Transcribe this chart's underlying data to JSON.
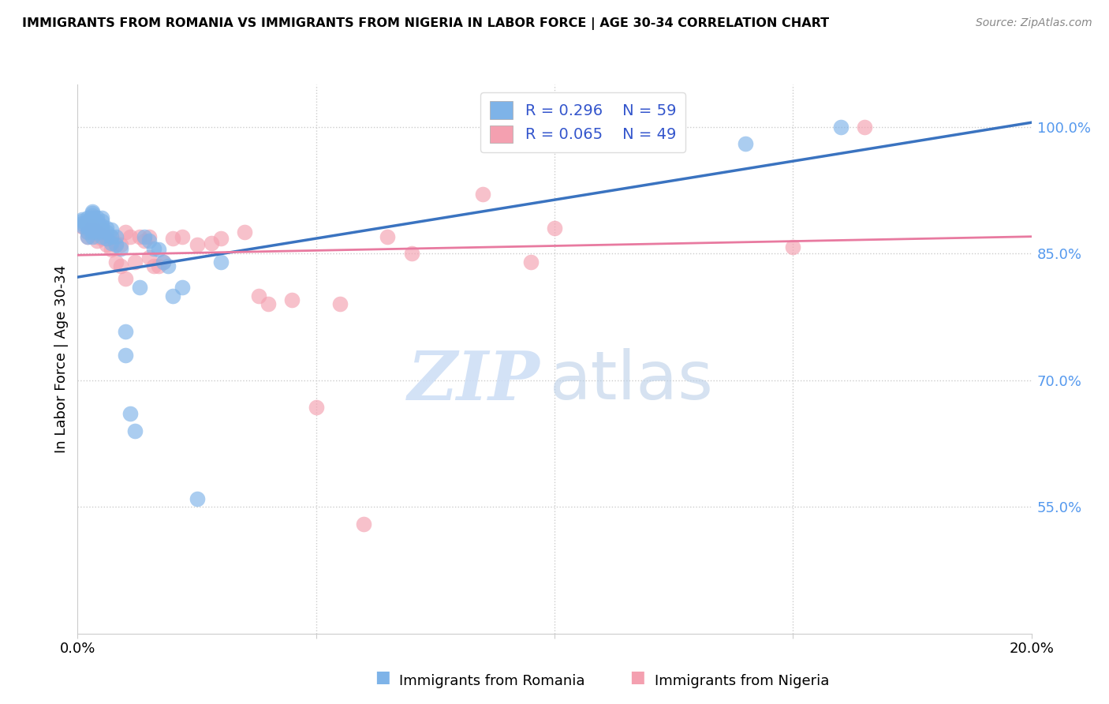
{
  "title": "IMMIGRANTS FROM ROMANIA VS IMMIGRANTS FROM NIGERIA IN LABOR FORCE | AGE 30-34 CORRELATION CHART",
  "source": "Source: ZipAtlas.com",
  "ylabel": "In Labor Force | Age 30-34",
  "xlim": [
    0.0,
    0.2
  ],
  "ylim": [
    0.4,
    1.05
  ],
  "y_ticks_right": [
    0.55,
    0.7,
    0.85,
    1.0
  ],
  "y_tick_labels_right": [
    "55.0%",
    "70.0%",
    "85.0%",
    "100.0%"
  ],
  "romania_R": 0.296,
  "romania_N": 59,
  "nigeria_R": 0.065,
  "nigeria_N": 49,
  "romania_color": "#7EB3E8",
  "nigeria_color": "#F4A0B0",
  "romania_line_color": "#3A73C0",
  "nigeria_line_color": "#E87AA0",
  "legend_label_romania": "Immigrants from Romania",
  "legend_label_nigeria": "Immigrants from Nigeria",
  "romania_x": [
    0.001,
    0.001,
    0.001,
    0.001,
    0.002,
    0.002,
    0.002,
    0.002,
    0.002,
    0.002,
    0.002,
    0.003,
    0.003,
    0.003,
    0.003,
    0.003,
    0.003,
    0.003,
    0.003,
    0.003,
    0.003,
    0.003,
    0.004,
    0.004,
    0.004,
    0.004,
    0.004,
    0.005,
    0.005,
    0.005,
    0.005,
    0.005,
    0.005,
    0.006,
    0.006,
    0.006,
    0.007,
    0.007,
    0.007,
    0.008,
    0.008,
    0.009,
    0.01,
    0.01,
    0.011,
    0.012,
    0.013,
    0.014,
    0.015,
    0.016,
    0.017,
    0.018,
    0.019,
    0.02,
    0.022,
    0.025,
    0.03,
    0.14,
    0.16
  ],
  "romania_y": [
    0.883,
    0.886,
    0.888,
    0.89,
    0.87,
    0.875,
    0.88,
    0.883,
    0.886,
    0.888,
    0.892,
    0.87,
    0.875,
    0.878,
    0.88,
    0.882,
    0.885,
    0.888,
    0.892,
    0.895,
    0.898,
    0.9,
    0.875,
    0.88,
    0.883,
    0.888,
    0.892,
    0.87,
    0.875,
    0.88,
    0.883,
    0.888,
    0.892,
    0.868,
    0.875,
    0.88,
    0.862,
    0.87,
    0.878,
    0.86,
    0.87,
    0.856,
    0.73,
    0.758,
    0.66,
    0.64,
    0.81,
    0.87,
    0.865,
    0.856,
    0.855,
    0.84,
    0.835,
    0.8,
    0.81,
    0.56,
    0.84,
    0.98,
    1.0
  ],
  "nigeria_x": [
    0.001,
    0.002,
    0.002,
    0.003,
    0.003,
    0.004,
    0.004,
    0.004,
    0.005,
    0.005,
    0.005,
    0.006,
    0.006,
    0.007,
    0.007,
    0.008,
    0.008,
    0.009,
    0.009,
    0.01,
    0.01,
    0.011,
    0.012,
    0.013,
    0.014,
    0.015,
    0.015,
    0.016,
    0.017,
    0.018,
    0.02,
    0.022,
    0.025,
    0.028,
    0.03,
    0.035,
    0.038,
    0.04,
    0.045,
    0.05,
    0.055,
    0.06,
    0.065,
    0.07,
    0.085,
    0.095,
    0.1,
    0.15,
    0.165
  ],
  "nigeria_y": [
    0.882,
    0.87,
    0.875,
    0.878,
    0.882,
    0.865,
    0.87,
    0.875,
    0.868,
    0.872,
    0.878,
    0.86,
    0.868,
    0.855,
    0.87,
    0.84,
    0.862,
    0.835,
    0.86,
    0.82,
    0.875,
    0.87,
    0.84,
    0.87,
    0.865,
    0.87,
    0.845,
    0.835,
    0.835,
    0.84,
    0.868,
    0.87,
    0.86,
    0.862,
    0.868,
    0.875,
    0.8,
    0.79,
    0.795,
    0.668,
    0.79,
    0.53,
    0.87,
    0.85,
    0.92,
    0.84,
    0.88,
    0.858,
    1.0
  ],
  "romania_trendline": [
    0.822,
    1.005
  ],
  "nigeria_trendline": [
    0.848,
    0.87
  ]
}
